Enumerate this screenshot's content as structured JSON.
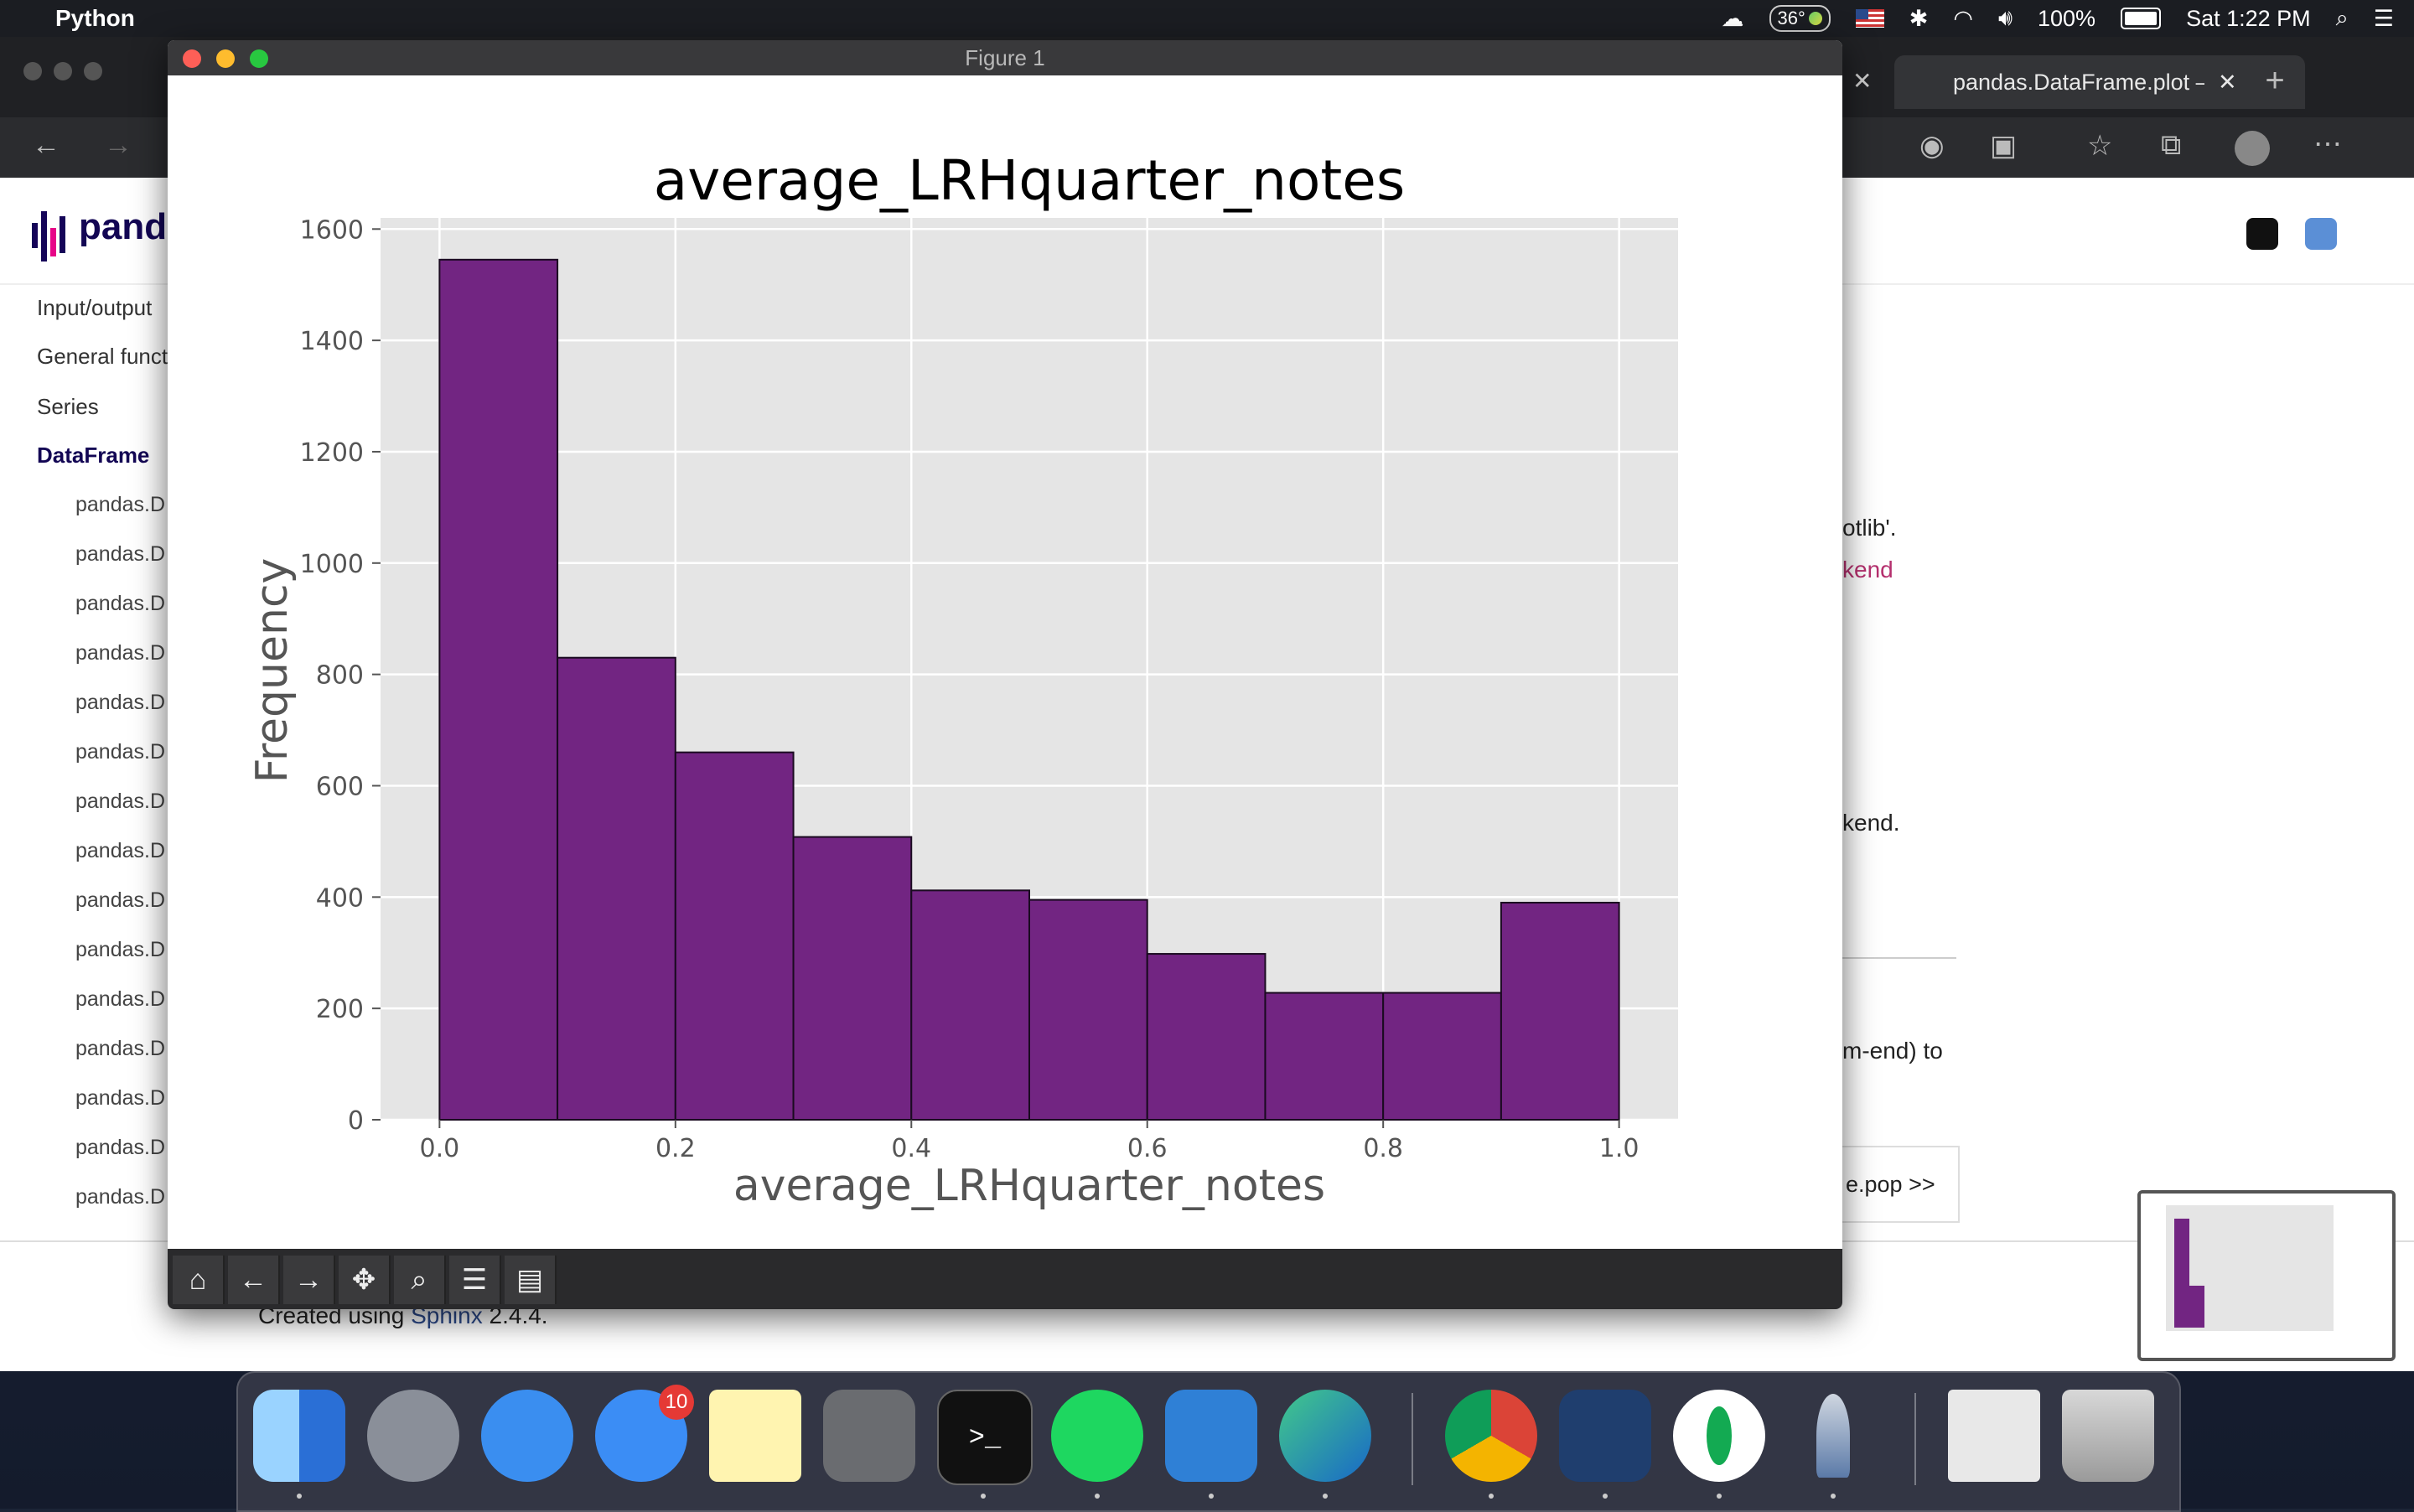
{
  "menubar": {
    "app_name": "Python",
    "temperature": "36°",
    "battery": "100%",
    "clock": "Sat 1:22 PM"
  },
  "browser": {
    "tab_title": "pandas.DataFrame.plot — ",
    "logo_text": "pand",
    "sidebar": {
      "items": [
        "Input/output",
        "General funct",
        "Series",
        "DataFrame"
      ],
      "sub_items": [
        "pandas.D",
        "pandas.D",
        "pandas.D",
        "pandas.D",
        "pandas.D",
        "pandas.D",
        "pandas.D",
        "pandas.D",
        "pandas.D",
        "pandas.D",
        "pandas.D",
        "pandas.D",
        "pandas.D",
        "pandas.D",
        "pandas.D"
      ]
    },
    "content_fragments": [
      "otlib'.",
      "kend",
      "kend.",
      "m-end) to",
      "e.pop >>"
    ],
    "footer": {
      "prefix": "Created using ",
      "link": "Sphinx",
      "suffix": " 2.4.4."
    }
  },
  "figure_window": {
    "title": "Figure 1",
    "toolbar": [
      "home-icon",
      "back-arrow-icon",
      "forward-arrow-icon",
      "pan-move-icon",
      "zoom-icon",
      "configure-sliders-icon",
      "save-icon"
    ]
  },
  "chart_data": {
    "type": "bar",
    "title": "average_LRHquarter_notes",
    "xlabel": "average_LRHquarter_notes",
    "ylabel": "Frequency",
    "bin_edges": [
      0.0,
      0.1,
      0.2,
      0.3,
      0.4,
      0.5,
      0.6,
      0.7,
      0.8,
      0.9,
      1.0
    ],
    "values": [
      1545,
      830,
      660,
      508,
      412,
      395,
      298,
      228,
      228,
      390
    ],
    "xlim": [
      -0.05,
      1.05
    ],
    "ylim": [
      0,
      1620
    ],
    "xticks": [
      "0.0",
      "0.2",
      "0.4",
      "0.6",
      "0.8",
      "1.0"
    ],
    "yticks": [
      "0",
      "200",
      "400",
      "600",
      "800",
      "1000",
      "1200",
      "1400",
      "1600"
    ],
    "bar_color": "#722582",
    "background": "#e5e5e5",
    "grid": true
  },
  "dock": {
    "apps": [
      "finder-icon",
      "launchpad-icon",
      "safari-icon",
      "messages-icon",
      "notes-icon",
      "system-preferences-icon",
      "terminal-icon",
      "spotify-icon",
      "vscode-icon",
      "edge-icon",
      "chrome-icon",
      "mysql-workbench-icon",
      "mongodb-compass-icon",
      "python-launcher-icon",
      "downloads-stack-icon",
      "trash-icon"
    ],
    "messages_badge": "10"
  }
}
